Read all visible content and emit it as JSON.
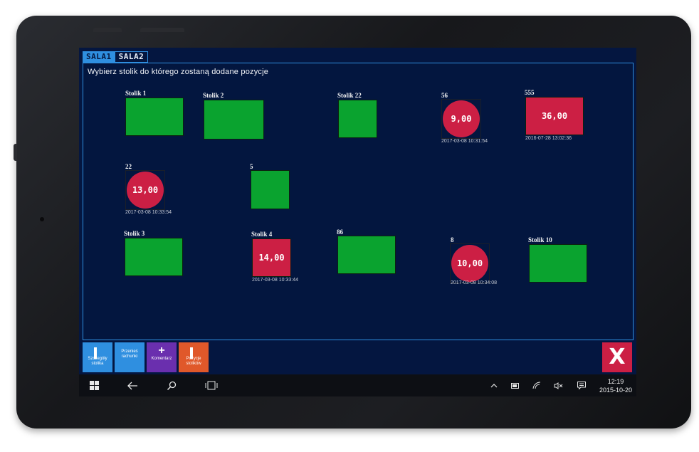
{
  "tabs": {
    "sala1": "SALA1",
    "sala2": "SALA2"
  },
  "instruction": "Wybierz stolik do którego zostaną dodane pozycje",
  "tables": {
    "stolik1": {
      "name": "Stolik 1"
    },
    "stolik2": {
      "name": "Stolik 2"
    },
    "stolik22": {
      "name": "Stolik 22"
    },
    "t56": {
      "name": "56",
      "amount": "9,00",
      "time": "2017-03-08 10:31:54"
    },
    "t555": {
      "name": "555",
      "amount": "36,00",
      "time": "2016-07-28 13:02:36"
    },
    "t22": {
      "name": "22",
      "amount": "13,00",
      "time": "2017-03-08 10:33:54"
    },
    "t5": {
      "name": "5"
    },
    "stolik3": {
      "name": "Stolik 3"
    },
    "stolik4": {
      "name": "Stolik 4",
      "amount": "14,00",
      "time": "2017-03-08 10:33:44"
    },
    "t86": {
      "name": "86"
    },
    "t8": {
      "name": "8",
      "amount": "10,00",
      "time": "2017-03-08 10:34:08"
    },
    "stolik10": {
      "name": "Stolik 10"
    }
  },
  "toolbar": {
    "details_label": "Szczegóły stolika",
    "move_label": "Przenieś rachunki",
    "comment_label": "Komentarz",
    "positions_label": "Pozycje stolików",
    "close_label": "X"
  },
  "colors": {
    "free": "#0aa32f",
    "busy": "#cc1f44",
    "accent": "#2f8fe0",
    "background": "#041640"
  },
  "taskbar": {
    "time": "12:19",
    "date": "2015-10-20"
  },
  "icons": {
    "start": "windows-icon",
    "back": "back-arrow-icon",
    "search": "search-icon",
    "task_view": "task-view-icon",
    "up": "chevron-up-icon",
    "battery": "battery-icon",
    "wifi": "wifi-icon",
    "volume": "volume-mute-icon",
    "notifications": "notification-icon"
  }
}
